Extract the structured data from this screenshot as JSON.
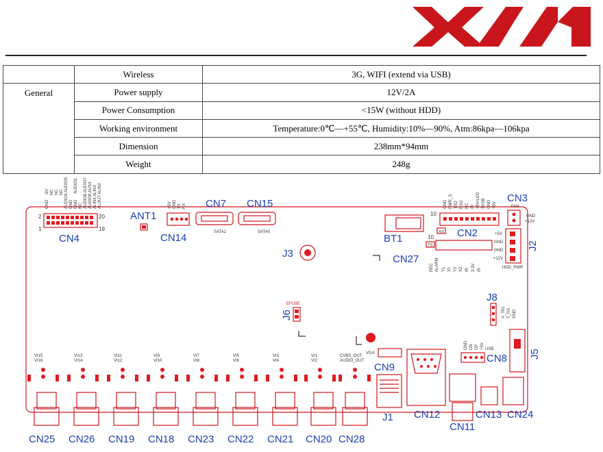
{
  "colors": {
    "logo_red": "#c9161c",
    "label_blue": "#1a3fb4",
    "outline_red": "#d0161c"
  },
  "spec_table": {
    "group": "General",
    "rows": [
      {
        "item": "Wireless",
        "value": "3G, WIFI (extend via USB)"
      },
      {
        "item": "Power supply",
        "value": "12V/2A"
      },
      {
        "item": "Power Consumption",
        "value": "<15W (without HDD)"
      },
      {
        "item": "Working environment",
        "value": "Temperature:0℃—+55℃, Humidity:10%—90%, Atm:86kpa—106kpa"
      },
      {
        "item": "Dimension",
        "value": "238mm*94mm"
      },
      {
        "item": "Weight",
        "value": "248g"
      }
    ]
  },
  "board": {
    "cn4": {
      "label": "CN4",
      "pin_2": "2",
      "pin_20": "20",
      "pin_1": "1",
      "pin_19": "19",
      "pins": [
        "GND",
        "-5V",
        "NC",
        "NC",
        "NC",
        "AUDIO4 AUDIO5",
        "GND",
        "GND",
        "AUDIO3",
        "NC",
        "AUDIO6 AUDIO7",
        "AUDIO8 ALIN1",
        "ALIN4 ALIN3",
        "ALOUT ALIN2"
      ]
    },
    "ant1": "ANT1",
    "cn14": {
      "label": "CN14",
      "pins": [
        "+5V",
        "GND",
        "TX",
        "RX"
      ]
    },
    "cn7": {
      "label": "CN7",
      "sub": "SATA1"
    },
    "cn15": {
      "label": "CN15",
      "sub": "SATA0"
    },
    "bt1": "BT1",
    "j3": "J3",
    "cn2": {
      "label": "CN2",
      "pin_10": "10",
      "mark": "AS",
      "pins": [
        "GND",
        "PWR_S",
        "TXD",
        "RXD",
        "NC",
        "IR",
        "+5V/LED",
        "3VSB",
        "GND",
        "+5V"
      ]
    },
    "cn27": {
      "label": "CN27",
      "pin_10": "10",
      "mark": "TS",
      "pins": [
        "REC",
        "ALARM",
        "Y1",
        "X1",
        "Y2",
        "X2",
        "IR",
        "3.3V",
        "IR"
      ]
    },
    "cn3": {
      "label": "CN3",
      "sub": "FAN",
      "pins": [
        "GND",
        "+12V"
      ]
    },
    "j2": {
      "label": "J2",
      "pins": [
        "+5V",
        "GND",
        "GND",
        "+12V"
      ],
      "sub": "HDD_PWR"
    },
    "j6": {
      "label": "J6",
      "sub": "EFUSE"
    },
    "j8": {
      "label": "J8",
      "pins": [
        "V_TEL",
        "T_RX",
        "GND"
      ]
    },
    "j5": "J5",
    "cn8": {
      "label": "CN8",
      "sub": "USB",
      "pins": [
        "GND",
        "DN",
        "DP",
        "+5V"
      ]
    },
    "cn9": {
      "label": "CN9",
      "sub": "VGA"
    },
    "bnc_inputs": [
      {
        "label": "CN25",
        "top": "VI15",
        "bottom": "VI16"
      },
      {
        "label": "CN26",
        "top": "VI13",
        "bottom": "VI14"
      },
      {
        "label": "CN19",
        "top": "VI11",
        "bottom": "VI12"
      },
      {
        "label": "CN18",
        "top": "VI9",
        "bottom": "VI10"
      },
      {
        "label": "CN23",
        "top": "VI7",
        "bottom": "VI8"
      },
      {
        "label": "CN22",
        "top": "VI5",
        "bottom": "VI6"
      },
      {
        "label": "CN21",
        "top": "VI3",
        "bottom": "VI4"
      },
      {
        "label": "CN20",
        "top": "VI1",
        "bottom": "VI2"
      },
      {
        "label": "CN28",
        "top": "CVBS_OUT",
        "bottom": "AUDIO_OUT"
      }
    ],
    "j1": "J1",
    "cn12": "CN12",
    "cn11": "CN11",
    "cn13": "CN13",
    "cn24": "CN24"
  }
}
